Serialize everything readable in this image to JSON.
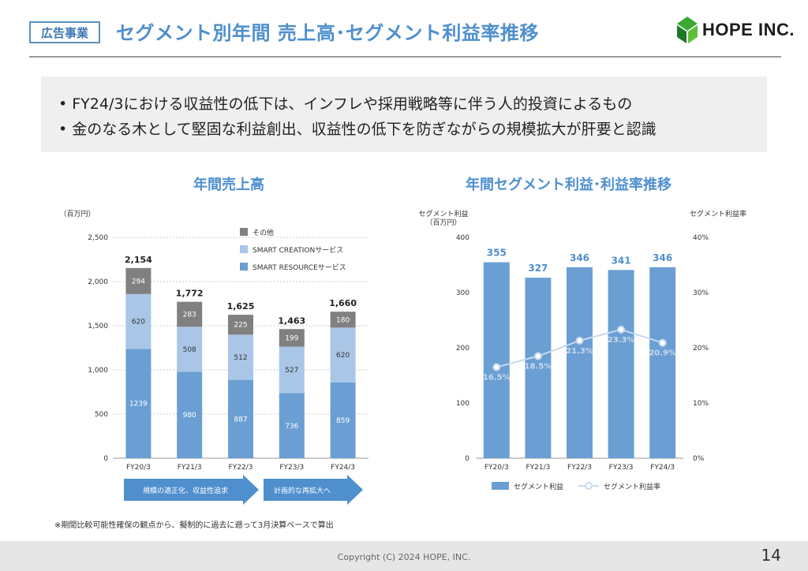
{
  "header": {
    "tag": "広告事業",
    "title": "セグメント別年間 売上高･セグメント利益率推移",
    "logo": "HOPE INC."
  },
  "summary": {
    "bullets": [
      "• FY24/3における収益性の低下は、インフレや採用戦略等に伴う人的投資によるもの",
      "• 金のなる木として堅固な利益創出、収益性の低下を防ぎながらの規模拡大が肝要と認識"
    ]
  },
  "left_chart": {
    "title": "年間売上高",
    "unit": "（百万円）",
    "arrows": [
      "規模の適正化、収益性追求",
      "計画的な再拡大へ"
    ]
  },
  "right_chart": {
    "title": "年間セグメント利益･利益率推移",
    "left_unit_line1": "セグメント利益",
    "left_unit_line2": "（百万円）",
    "right_unit": "セグメント利益率"
  },
  "chart_data": [
    {
      "type": "bar",
      "stacked": true,
      "title": "年間売上高",
      "ylabel": "（百万円）",
      "categories": [
        "FY20/3",
        "FY21/3",
        "FY22/3",
        "FY23/3",
        "FY24/3"
      ],
      "series": [
        {
          "name": "SMART RESOURCEサービス",
          "values": [
            1239,
            980,
            887,
            736,
            859
          ],
          "color": "#6b9fd3"
        },
        {
          "name": "SMART CREATIONサービス",
          "values": [
            620,
            508,
            512,
            527,
            620
          ],
          "color": "#a9c6e6"
        },
        {
          "name": "その他",
          "values": [
            294,
            283,
            225,
            199,
            180
          ],
          "color": "#808080"
        }
      ],
      "totals": [
        "2,154",
        "1,772",
        "1,625",
        "1,463",
        "1,660"
      ],
      "ylim": [
        0,
        2500
      ],
      "yticks": [
        0,
        500,
        1000,
        1500,
        2000,
        2500
      ],
      "ytick_labels": [
        "0",
        "500",
        "1,000",
        "1,500",
        "2,000",
        "2,500"
      ],
      "grid": true,
      "legend": "top-right"
    },
    {
      "type": "bar",
      "title": "年間セグメント利益･利益率推移",
      "categories": [
        "FY20/3",
        "FY21/3",
        "FY22/3",
        "FY23/3",
        "FY24/3"
      ],
      "series": [
        {
          "name": "セグメント利益",
          "type": "bar",
          "axis": "left",
          "values": [
            355,
            327,
            346,
            341,
            346
          ],
          "color": "#6b9fd3"
        },
        {
          "name": "セグメント利益率",
          "type": "line",
          "axis": "right",
          "values": [
            16.5,
            18.5,
            21.3,
            23.3,
            20.9
          ],
          "labels": [
            "16.5%",
            "18.5%",
            "21.3%",
            "23.3%",
            "20.9%"
          ],
          "color": "#c7d9ee"
        }
      ],
      "ylim": [
        0,
        400
      ],
      "yticks": [
        0,
        100,
        200,
        300,
        400
      ],
      "y2lim": [
        0,
        40
      ],
      "y2ticks": [
        0,
        10,
        20,
        30,
        40
      ],
      "y2tick_labels": [
        "0%",
        "10%",
        "20%",
        "30%",
        "40%"
      ],
      "grid": false,
      "legend": "bottom"
    }
  ],
  "footnote": "※期間比較可能性確保の観点から、擬制的に過去に遡って3月決算ベースで算出",
  "footer": {
    "copyright": "Copyright (C) 2024 HOPE, INC.",
    "page": "14"
  }
}
